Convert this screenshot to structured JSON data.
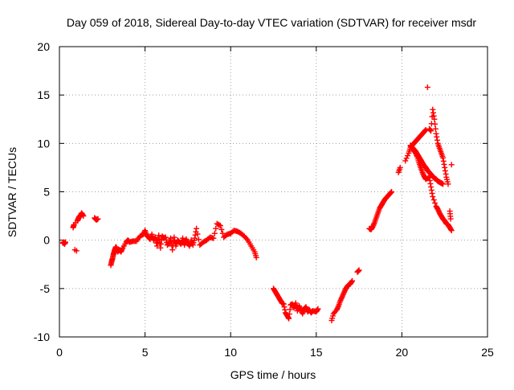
{
  "chart_data": {
    "type": "scatter",
    "title": "Day 059 of 2018, Sidereal Day-to-day VTEC variation (SDTVAR) for receiver msdr",
    "xlabel": "GPS time / hours",
    "ylabel": "SDTVAR / TECUs",
    "xlim": [
      0,
      25
    ],
    "ylim": [
      -10,
      20
    ],
    "xticks": [
      0,
      5,
      10,
      15,
      20,
      25
    ],
    "yticks": [
      -10,
      -5,
      0,
      5,
      10,
      15,
      20
    ],
    "xtick_labels": [
      "0",
      "5",
      "10",
      "15",
      "20",
      "25"
    ],
    "ytick_labels": [
      "-10",
      "-5",
      "0",
      "5",
      "10",
      "15",
      "20"
    ],
    "grid": true,
    "marker": "+",
    "series_color": "#ff0000",
    "series": [
      {
        "name": "SDTVAR",
        "x": [
          0.2,
          0.25,
          0.3,
          0.35,
          0.8,
          0.85,
          0.9,
          0.95,
          1.0,
          1.05,
          1.1,
          1.15,
          1.2,
          1.3,
          1.4,
          2.05,
          2.15,
          2.25,
          3.0,
          3.05,
          3.1,
          3.15,
          3.2,
          3.25,
          3.3,
          3.35,
          3.4,
          3.5,
          3.6,
          3.7,
          3.9,
          4.0,
          4.1,
          4.3,
          4.5,
          4.7,
          4.9,
          5.0,
          5.1,
          5.2,
          5.3,
          5.4,
          5.5,
          5.6,
          5.7,
          5.8,
          5.9,
          6.0,
          6.1,
          6.2,
          6.3,
          6.4,
          6.5,
          6.6,
          6.7,
          6.8,
          6.9,
          7.0,
          7.1,
          7.2,
          7.3,
          7.4,
          7.5,
          7.6,
          7.7,
          7.8,
          7.9,
          8.0,
          8.2,
          8.4,
          8.6,
          8.8,
          9.0,
          9.2,
          9.4,
          9.6,
          9.8,
          10.0,
          10.2,
          10.4,
          10.6,
          10.8,
          11.0,
          11.2,
          11.4,
          11.5,
          12.5,
          12.6,
          12.7,
          12.8,
          12.9,
          13.0,
          13.1,
          13.2,
          13.3,
          13.4,
          13.5,
          13.6,
          13.7,
          13.8,
          13.9,
          14.0,
          14.1,
          14.2,
          14.3,
          14.4,
          14.5,
          14.6,
          14.7,
          14.8,
          15.0,
          15.1,
          15.9,
          16.0,
          16.2,
          16.3,
          16.4,
          16.5,
          16.6,
          16.7,
          16.8,
          16.9,
          17.0,
          17.1,
          17.4,
          17.5,
          18.1,
          18.2,
          18.3,
          18.4,
          18.5,
          18.6,
          18.7,
          18.8,
          18.9,
          19.0,
          19.1,
          19.2,
          19.3,
          19.4,
          19.8,
          19.9,
          20.2,
          20.4,
          20.5,
          20.6,
          20.7,
          20.8,
          20.9,
          21.0,
          21.1,
          21.2,
          21.3,
          21.4,
          21.5,
          21.6,
          21.7,
          21.8,
          21.9,
          22.0,
          22.1,
          22.2,
          22.3,
          22.4,
          22.5,
          22.6,
          22.7,
          22.8,
          22.85,
          22.9
        ],
        "y": [
          -0.3,
          -0.2,
          -0.4,
          -0.2,
          1.3,
          1.6,
          -1.0,
          1.8,
          -1.1,
          2.0,
          2.2,
          2.4,
          2.5,
          2.8,
          2.5,
          2.3,
          2.1,
          2.2,
          -2.6,
          -2.2,
          -1.9,
          -1.5,
          -1.2,
          -0.9,
          -0.7,
          -0.9,
          -1.2,
          -1.0,
          -1.2,
          -0.8,
          -0.2,
          0.0,
          -0.2,
          -0.1,
          -0.1,
          0.4,
          0.6,
          1.0,
          0.5,
          0.3,
          0.1,
          0.6,
          0.0,
          0.3,
          -0.6,
          0.5,
          -0.8,
          0.4,
          0.2,
          0.3,
          -0.5,
          -0.3,
          0.2,
          -1.0,
          0.3,
          -0.6,
          0.0,
          -0.2,
          -0.4,
          0.2,
          -0.5,
          0.1,
          -0.3,
          -0.6,
          0.0,
          -0.5,
          0.2,
          1.2,
          -0.5,
          -0.2,
          0.0,
          0.3,
          0.2,
          1.7,
          1.5,
          0.3,
          0.6,
          0.7,
          1.0,
          0.9,
          0.7,
          0.4,
          0.0,
          -0.6,
          -1.2,
          -1.8,
          -5.0,
          -5.3,
          -5.6,
          -5.9,
          -6.2,
          -6.5,
          -6.6,
          -7.5,
          -7.8,
          -8.1,
          -6.7,
          -6.6,
          -7.0,
          -6.5,
          -7.3,
          -6.8,
          -7.2,
          -7.6,
          -7.1,
          -6.9,
          -7.4,
          -7.2,
          -7.5,
          -7.3,
          -7.4,
          -7.1,
          -8.3,
          -7.6,
          -7.2,
          -6.8,
          -6.3,
          -5.9,
          -5.5,
          -5.1,
          -4.8,
          -4.6,
          -4.5,
          -4.2,
          -3.3,
          -3.1,
          1.2,
          1.1,
          1.4,
          1.8,
          2.3,
          2.8,
          3.3,
          3.6,
          3.9,
          4.2,
          4.4,
          4.6,
          4.8,
          5.0,
          7.0,
          7.5,
          8.2,
          9.0,
          9.6,
          9.8,
          10.0,
          10.2,
          10.4,
          10.6,
          10.8,
          11.0,
          11.2,
          11.4,
          15.8,
          11.5,
          11.3,
          13.5,
          12.5,
          11.0,
          10.0,
          9.5,
          9.0,
          8.5,
          7.5,
          6.5,
          5.8,
          3.0,
          2.2,
          7.8
        ],
        "x2": [
          20.6,
          20.7,
          20.8,
          20.9,
          21.0,
          21.1,
          21.2,
          21.3,
          21.4,
          21.6,
          21.7,
          21.8,
          22.0,
          22.1,
          22.2,
          22.3,
          22.4,
          22.5,
          22.6,
          22.7,
          22.8,
          22.9
        ],
        "y2": [
          9.5,
          9.3,
          9.0,
          8.6,
          8.0,
          7.5,
          7.0,
          6.6,
          6.3,
          6.5,
          5.5,
          4.5,
          3.5,
          3.2,
          2.8,
          2.5,
          2.2,
          2.0,
          1.7,
          1.6,
          1.3,
          1.0
        ],
        "x3": [
          20.5,
          20.6,
          20.7,
          20.8,
          20.9,
          21.0,
          21.1,
          21.2,
          21.3,
          21.4,
          21.5,
          21.6,
          21.7,
          21.8,
          21.9,
          22.0,
          22.1,
          22.2,
          22.3,
          22.4
        ],
        "y3": [
          9.8,
          9.6,
          9.4,
          9.2,
          8.9,
          8.6,
          8.3,
          8.0,
          7.7,
          7.5,
          7.2,
          7.0,
          6.8,
          6.6,
          6.4,
          6.3,
          6.1,
          6.0,
          5.9,
          5.8
        ]
      }
    ]
  }
}
